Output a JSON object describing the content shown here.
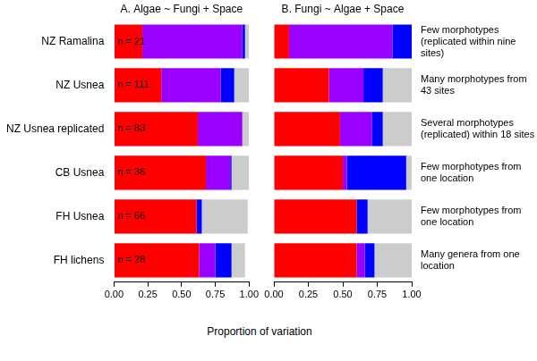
{
  "chart_data": [
    {
      "type": "bar",
      "orientation": "horizontal",
      "stacked": true,
      "title": "A. Algae ~ Fungi + Space",
      "xlabel": "Proportion of variation",
      "categories": [
        "NZ Ramalina",
        "NZ Usnea",
        "NZ Usnea replicated",
        "CB Usnea",
        "FH Usnea",
        "FH lichens"
      ],
      "series": [
        {
          "color": "#ff0000",
          "values": [
            0.21,
            0.35,
            0.62,
            0.68,
            0.61,
            0.63
          ]
        },
        {
          "color": "#9900ff",
          "values": [
            0.74,
            0.44,
            0.33,
            0.18,
            0,
            0.12
          ]
        },
        {
          "color": "#0000ff",
          "values": [
            0.02,
            0.1,
            0,
            0.01,
            0.04,
            0.12
          ]
        },
        {
          "color": "#cccccc",
          "values": [
            0.03,
            0.11,
            0.05,
            0.13,
            0.34,
            0.1
          ]
        }
      ],
      "annotations": [
        "n = 21",
        "n = 111",
        "n = 83",
        "n = 36",
        "n = 66",
        "n = 28"
      ],
      "xlim": [
        0,
        1
      ],
      "xticks": [
        {
          "value": 0,
          "label": "0.00"
        },
        {
          "value": 0.25,
          "label": "0.25"
        },
        {
          "value": 0.5,
          "label": "0.50"
        },
        {
          "value": 0.75,
          "label": "0.75"
        },
        {
          "value": 1,
          "label": "1.00"
        }
      ],
      "grid": false
    },
    {
      "type": "bar",
      "orientation": "horizontal",
      "stacked": true,
      "title": "B. Fungi ~ Algae + Space",
      "categories": [
        null,
        null,
        null,
        null,
        null,
        null
      ],
      "series": [
        {
          "color": "#ff0000",
          "values": [
            0.11,
            0.4,
            0.48,
            0.5,
            0.6,
            0.6
          ]
        },
        {
          "color": "#9900ff",
          "values": [
            0.75,
            0.25,
            0.23,
            0.03,
            0,
            0.06
          ]
        },
        {
          "color": "#0000ff",
          "values": [
            0.14,
            0.14,
            0.08,
            0.43,
            0.08,
            0.07
          ]
        },
        {
          "color": "#cccccc",
          "values": [
            0,
            0.21,
            0.21,
            0.04,
            0.32,
            0.27
          ]
        }
      ],
      "annotations": [
        "Few morphotypes (replicated within nine sites)",
        "Many morphotypes from 43 sites",
        "Several morphotypes (replicated) within 18 sites",
        "Few morphotypes from one location",
        "Few morphotypes from one location",
        "Many genera from one location"
      ],
      "xlim": [
        0,
        1
      ],
      "xticks": [
        {
          "value": 0,
          "label": "0.00"
        },
        {
          "value": 0.25,
          "label": "0.25"
        },
        {
          "value": 0.5,
          "label": "0.50"
        },
        {
          "value": 0.75,
          "label": "0.75"
        },
        {
          "value": 1,
          "label": "1.00"
        }
      ],
      "grid": false,
      "tick_labels": "x"
    }
  ]
}
